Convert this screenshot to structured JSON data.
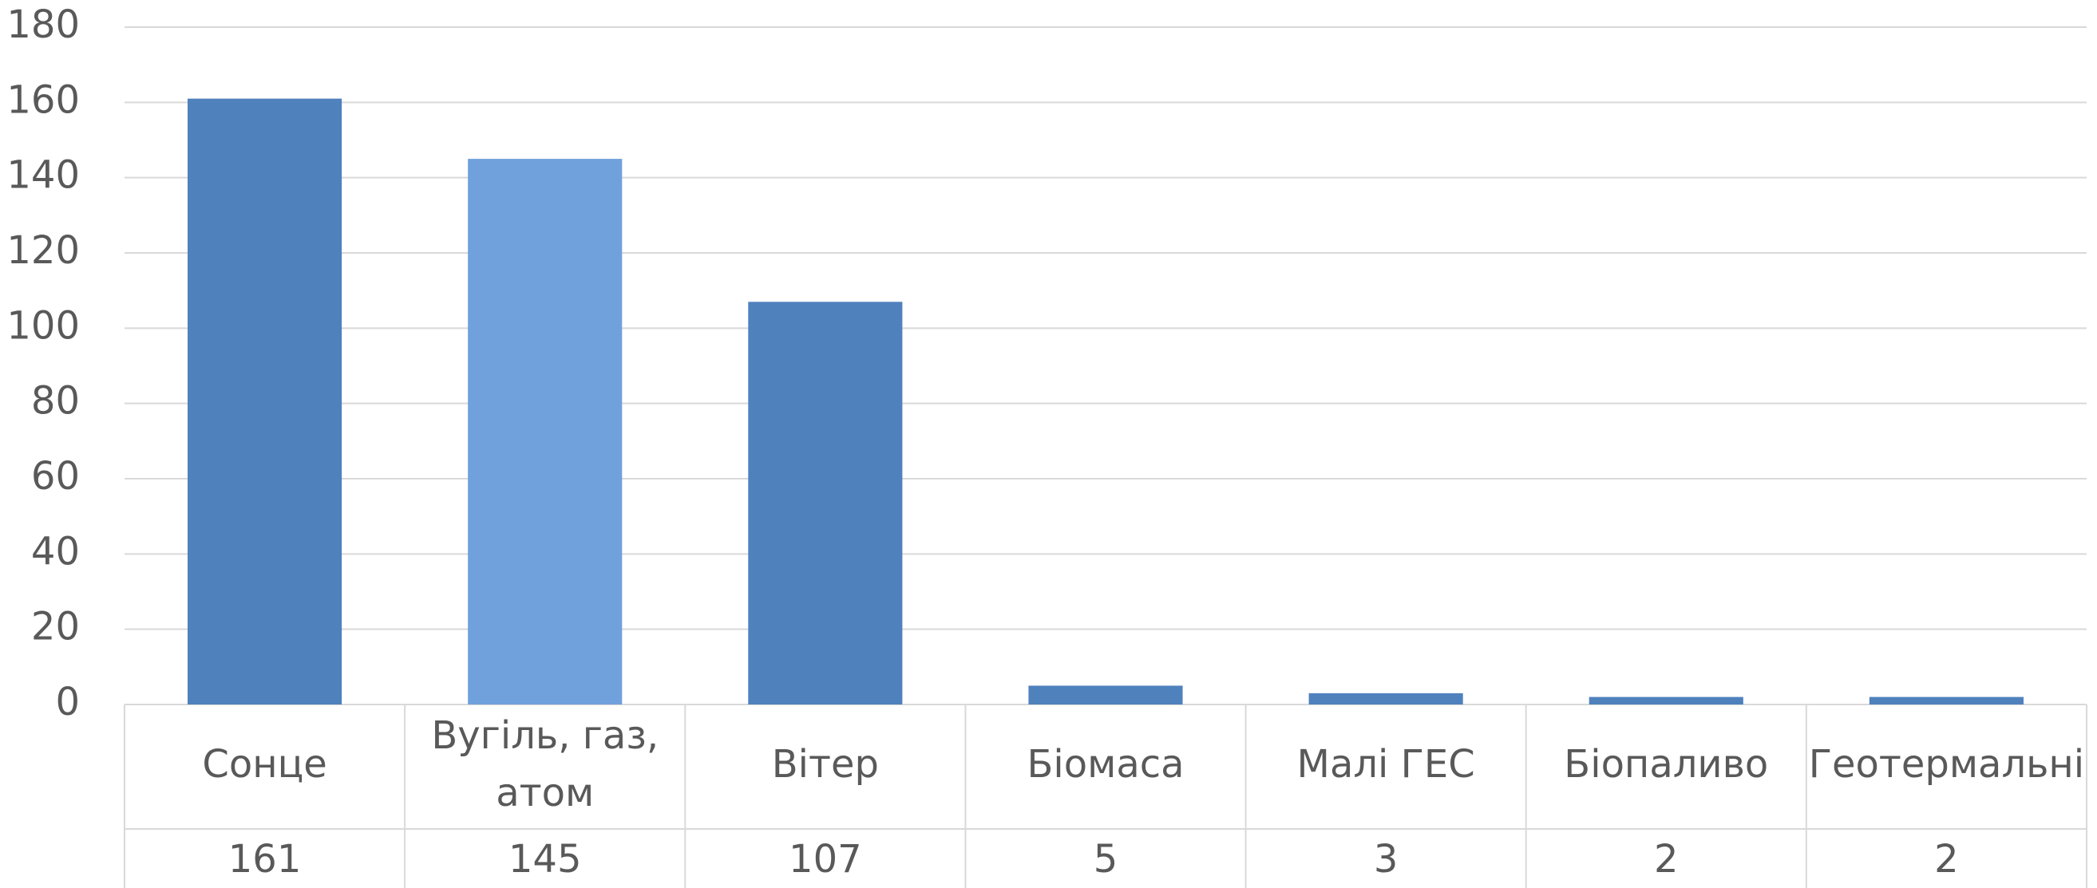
{
  "chart_data": {
    "type": "bar",
    "categories": [
      "Сонце",
      "Вугіль, газ, атом",
      "Вітер",
      "Біомаса",
      "Малі ГЕС",
      "Біопаливо",
      "Геотермальні"
    ],
    "values": [
      161,
      145,
      107,
      5,
      3,
      2,
      2
    ],
    "colors": [
      "#4f81bd",
      "#70a1dc",
      "#4f81bd",
      "#4f81bd",
      "#4f81bd",
      "#4f81bd",
      "#4f81bd"
    ],
    "ylim": [
      0,
      180
    ],
    "yticks": [
      0,
      20,
      40,
      60,
      80,
      100,
      120,
      140,
      160,
      180
    ],
    "grid": true,
    "data_table": true
  }
}
